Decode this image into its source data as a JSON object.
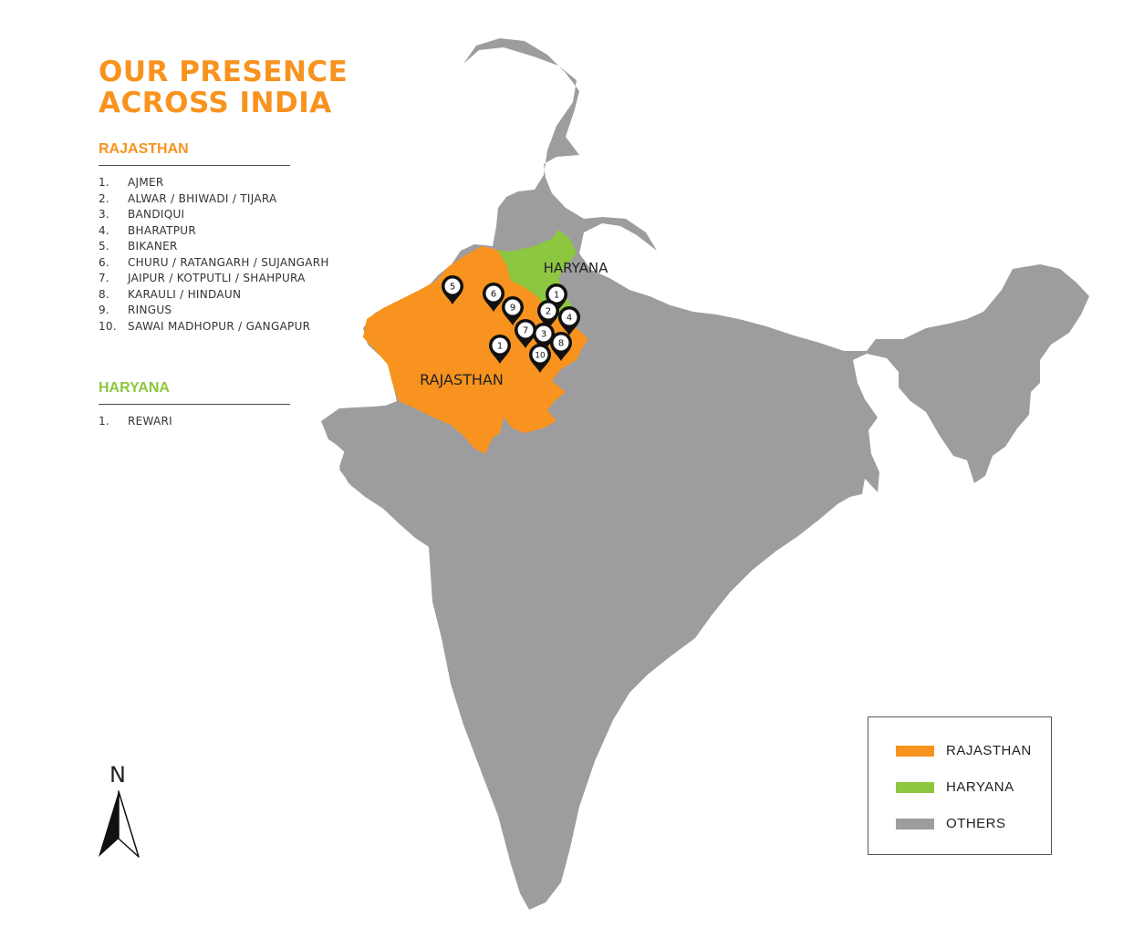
{
  "title": {
    "line1": "OUR PRESENCE",
    "line2": "ACROSS INDIA"
  },
  "sections": {
    "rajasthan": {
      "heading": "RAJASTHAN",
      "items": [
        {
          "num": "1.",
          "name": "AJMER"
        },
        {
          "num": "2.",
          "name": "ALWAR / BHIWADI / TIJARA"
        },
        {
          "num": "3.",
          "name": "BANDIQUI"
        },
        {
          "num": "4.",
          "name": "BHARATPUR"
        },
        {
          "num": "5.",
          "name": "BIKANER"
        },
        {
          "num": "6.",
          "name": "CHURU / RATANGARH / SUJANGARH"
        },
        {
          "num": "7.",
          "name": "JAIPUR / KOTPUTLI / SHAHPURA"
        },
        {
          "num": "8.",
          "name": "KARAULI / HINDAUN"
        },
        {
          "num": "9.",
          "name": "RINGUS"
        },
        {
          "num": "10.",
          "name": "SAWAI MADHOPUR / GANGAPUR"
        }
      ]
    },
    "haryana": {
      "heading": "HARYANA",
      "items": [
        {
          "num": "1.",
          "name": "REWARI"
        }
      ]
    }
  },
  "map": {
    "labels": {
      "rajasthan": "RAJASTHAN",
      "haryana": "HARYANA"
    },
    "markers": {
      "bikaner": "5",
      "churu": "6",
      "ringus": "9",
      "rewari": "1",
      "alwar": "2",
      "bharatpur": "4",
      "jaipur": "7",
      "bandiqui": "3",
      "ajmer": "1",
      "karauli": "8",
      "sawai_madhopur": "10"
    }
  },
  "legend": {
    "items": [
      {
        "label": "RAJASTHAN",
        "color": "#F7931E"
      },
      {
        "label": "HARYANA",
        "color": "#8DC63F"
      },
      {
        "label": "OTHERS",
        "color": "#9D9D9F"
      }
    ]
  },
  "compass": {
    "label": "N"
  },
  "colors": {
    "accent": "#F7931E",
    "haryana": "#8DC63F",
    "others": "#9D9D9F"
  }
}
